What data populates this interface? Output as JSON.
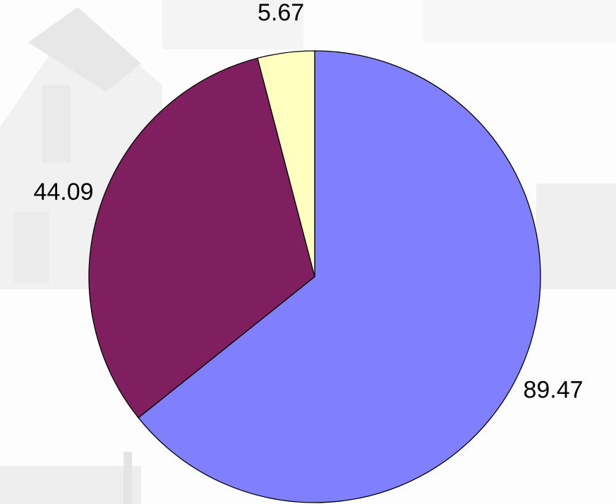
{
  "chart_data": {
    "type": "pie",
    "values": [
      89.47,
      44.09,
      5.67
    ],
    "colors": [
      "#8080ff",
      "#7f1f5f",
      "#ffffc0"
    ]
  }
}
